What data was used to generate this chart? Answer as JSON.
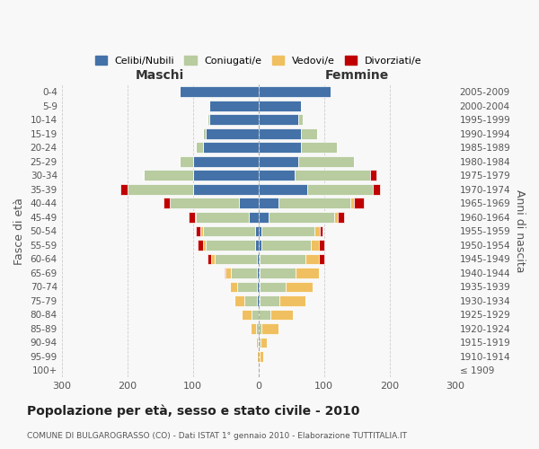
{
  "age_groups": [
    "100+",
    "95-99",
    "90-94",
    "85-89",
    "80-84",
    "75-79",
    "70-74",
    "65-69",
    "60-64",
    "55-59",
    "50-54",
    "45-49",
    "40-44",
    "35-39",
    "30-34",
    "25-29",
    "20-24",
    "15-19",
    "10-14",
    "5-9",
    "0-4"
  ],
  "birth_years": [
    "≤ 1909",
    "1910-1914",
    "1915-1919",
    "1920-1924",
    "1925-1929",
    "1930-1934",
    "1935-1939",
    "1940-1944",
    "1945-1949",
    "1950-1954",
    "1955-1959",
    "1960-1964",
    "1965-1969",
    "1970-1974",
    "1975-1979",
    "1980-1984",
    "1985-1989",
    "1990-1994",
    "1995-1999",
    "2000-2004",
    "2005-2009"
  ],
  "maschi": {
    "celibi": [
      0,
      0,
      0,
      0,
      0,
      2,
      2,
      2,
      2,
      5,
      5,
      15,
      30,
      100,
      100,
      100,
      85,
      80,
      75,
      75,
      120
    ],
    "coniugati": [
      0,
      0,
      1,
      4,
      10,
      20,
      30,
      40,
      65,
      75,
      80,
      80,
      105,
      100,
      75,
      20,
      10,
      5,
      2,
      0,
      0
    ],
    "vedovi": [
      0,
      2,
      3,
      8,
      15,
      15,
      12,
      8,
      5,
      5,
      3,
      2,
      0,
      0,
      0,
      0,
      0,
      0,
      0,
      0,
      0
    ],
    "divorziati": [
      0,
      0,
      0,
      0,
      0,
      0,
      0,
      2,
      5,
      8,
      8,
      10,
      10,
      10,
      0,
      0,
      0,
      0,
      0,
      0,
      0
    ]
  },
  "femmine": {
    "nubili": [
      0,
      0,
      0,
      0,
      0,
      2,
      2,
      2,
      2,
      5,
      5,
      15,
      30,
      75,
      55,
      60,
      65,
      65,
      60,
      65,
      110
    ],
    "coniugate": [
      0,
      2,
      3,
      5,
      18,
      30,
      40,
      55,
      70,
      75,
      80,
      100,
      110,
      100,
      115,
      85,
      55,
      25,
      8,
      0,
      0
    ],
    "vedove": [
      0,
      5,
      10,
      25,
      35,
      40,
      40,
      35,
      20,
      12,
      8,
      6,
      6,
      0,
      0,
      0,
      0,
      0,
      0,
      0,
      0
    ],
    "divorziate": [
      0,
      0,
      0,
      0,
      0,
      0,
      0,
      0,
      8,
      8,
      5,
      10,
      15,
      10,
      10,
      0,
      0,
      0,
      0,
      0,
      0
    ]
  },
  "colors": {
    "celibi": "#4472a8",
    "coniugati": "#b8cca0",
    "vedovi": "#f0c060",
    "divorziati": "#c00000"
  },
  "xlim": 300,
  "title": "Popolazione per età, sesso e stato civile - 2010",
  "subtitle": "COMUNE DI BULGAROGRASSO (CO) - Dati ISTAT 1° gennaio 2010 - Elaborazione TUTTITALIA.IT",
  "ylabel_left": "Fasce di età",
  "ylabel_right": "Anni di nascita",
  "xlabel_maschi": "Maschi",
  "xlabel_femmine": "Femmine",
  "background_color": "#f8f8f8",
  "legend_labels": [
    "Celibi/Nubili",
    "Coniugati/e",
    "Vedovi/e",
    "Divorziati/e"
  ]
}
